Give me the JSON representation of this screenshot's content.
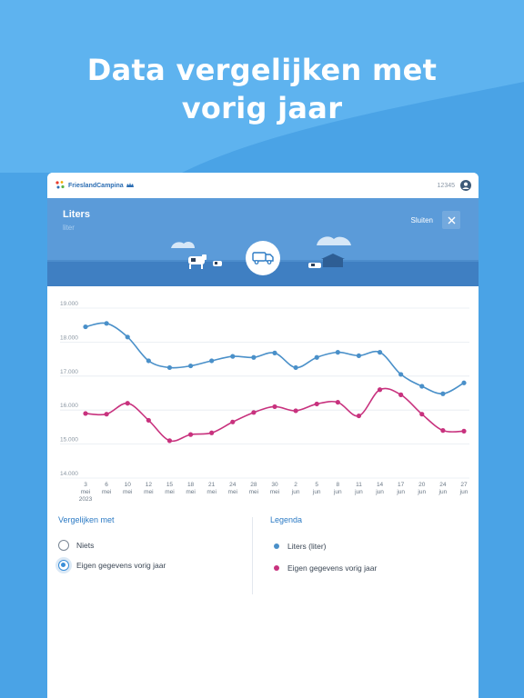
{
  "headline": {
    "line1": "Data vergelijken met",
    "line2": "vorig jaar"
  },
  "topbar": {
    "brand": "FrieslandCampina",
    "user_id": "12345"
  },
  "banner": {
    "title": "Liters",
    "subtitle": "liter",
    "close_label": "Sluiten"
  },
  "colors": {
    "background": "#4aa3e6",
    "series_current": "#4a90c9",
    "series_previous": "#c8327e",
    "accent": "#2b7ac4"
  },
  "icons": {
    "brand": "frieslandcampina-logo-icon",
    "user": "user-avatar-icon",
    "close": "close-icon",
    "truck": "milk-truck-icon"
  },
  "compare": {
    "title": "Vergelijken met",
    "options": [
      {
        "label": "Niets",
        "selected": false
      },
      {
        "label": "Eigen gegevens vorig jaar",
        "selected": true
      }
    ]
  },
  "legend": {
    "title": "Legenda",
    "items": [
      {
        "label": "Liters (liter)",
        "color": "#4a90c9"
      },
      {
        "label": "Eigen gegevens vorig jaar",
        "color": "#c8327e"
      }
    ]
  },
  "chart_data": {
    "type": "line",
    "ylim": [
      14000,
      19000
    ],
    "y_ticks": [
      "19.000",
      "18.000",
      "17.000",
      "16.000",
      "15.000",
      "14.000"
    ],
    "y_tick_values": [
      19000,
      18000,
      17000,
      16000,
      15000,
      14000
    ],
    "grid": true,
    "categories": [
      [
        "3",
        "mei",
        "2023"
      ],
      [
        "6",
        "mei"
      ],
      [
        "10",
        "mei"
      ],
      [
        "12",
        "mei"
      ],
      [
        "15",
        "mei"
      ],
      [
        "18",
        "mei"
      ],
      [
        "21",
        "mei"
      ],
      [
        "24",
        "mei"
      ],
      [
        "28",
        "mei"
      ],
      [
        "30",
        "mei"
      ],
      [
        "2",
        "jun"
      ],
      [
        "5",
        "jun"
      ],
      [
        "8",
        "jun"
      ],
      [
        "11",
        "jun"
      ],
      [
        "14",
        "jun"
      ],
      [
        "17",
        "jun"
      ],
      [
        "20",
        "jun"
      ],
      [
        "24",
        "jun"
      ],
      [
        "27",
        "jun"
      ]
    ],
    "series": [
      {
        "name": "Liters (liter)",
        "color": "#4a90c9",
        "values": [
          18450,
          18550,
          18150,
          17450,
          17250,
          17300,
          17450,
          17580,
          17550,
          17680,
          17250,
          17550,
          17700,
          17600,
          17700,
          17050,
          16700,
          16480,
          16800
        ]
      },
      {
        "name": "Eigen gegevens vorig jaar",
        "color": "#c8327e",
        "values": [
          15900,
          15880,
          16200,
          15700,
          15100,
          15280,
          15330,
          15650,
          15930,
          16100,
          15980,
          16180,
          16230,
          15830,
          16600,
          16450,
          15880,
          15400,
          15380
        ]
      }
    ]
  }
}
